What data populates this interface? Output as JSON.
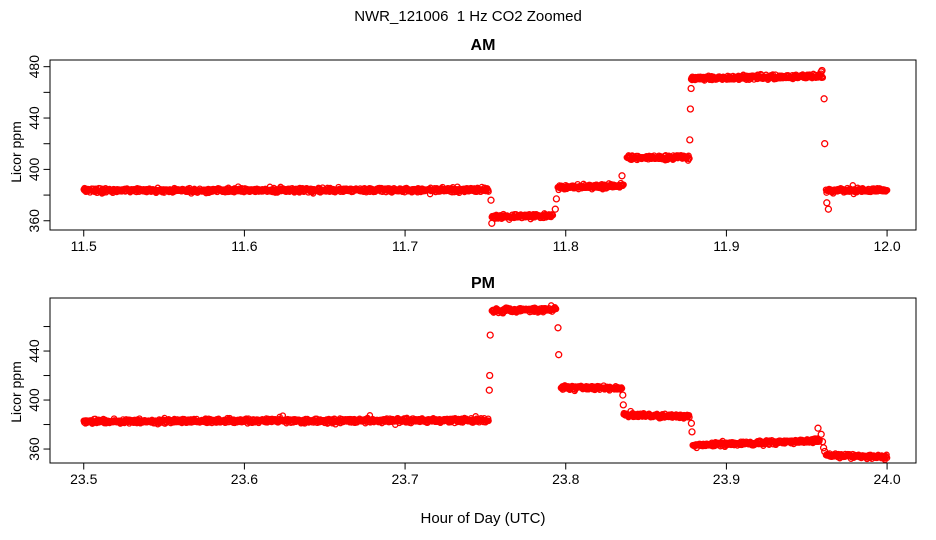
{
  "figure": {
    "title": "NWR_121006  1 Hz CO2 Zoomed",
    "xlabel": "Hour of Day (UTC)",
    "background": "#FFFFFF",
    "axis_color": "#000000",
    "point_color": "#FF0000"
  },
  "chart_data": [
    {
      "type": "scatter",
      "title": "AM",
      "ylabel": "Licor ppm",
      "marker": "open-circle",
      "point_color": "#FF0000",
      "sample_rate_hz": 1,
      "xlim": [
        11.479,
        12.018
      ],
      "ylim": [
        352.8,
        485.2
      ],
      "xticks": [
        11.5,
        11.6,
        11.7,
        11.8,
        11.9,
        12.0
      ],
      "xtick_labels": [
        "11.5",
        "11.6",
        "11.7",
        "11.8",
        "11.9",
        "12.0"
      ],
      "yticks_all": [
        360,
        380,
        400,
        420,
        440,
        460,
        480
      ],
      "yticks_labeled": [
        360,
        400,
        440,
        480
      ],
      "grid": false,
      "segments": [
        {
          "t0": 11.5,
          "t1": 11.752,
          "v0": 383.5,
          "v1": 384.0
        },
        {
          "t0": 11.754,
          "t1": 11.792,
          "v0": 363.0,
          "v1": 364.0
        },
        {
          "t0": 11.795,
          "t1": 11.836,
          "v0": 386.0,
          "v1": 387.0
        },
        {
          "t0": 11.838,
          "t1": 11.877,
          "v0": 409.0,
          "v1": 409.5
        },
        {
          "t0": 11.878,
          "t1": 11.96,
          "v0": 471.0,
          "v1": 472.5
        },
        {
          "t0": 11.962,
          "t1": 12.0,
          "v0": 383.5,
          "v1": 384.0
        }
      ],
      "transition_points": [
        {
          "t": 11.7535,
          "v": 376
        },
        {
          "t": 11.754,
          "v": 358
        },
        {
          "t": 11.7935,
          "v": 369
        },
        {
          "t": 11.7942,
          "v": 377
        },
        {
          "t": 11.835,
          "v": 395
        },
        {
          "t": 11.8772,
          "v": 423
        },
        {
          "t": 11.8776,
          "v": 447
        },
        {
          "t": 11.878,
          "v": 463
        },
        {
          "t": 11.959,
          "v": 476
        },
        {
          "t": 11.9595,
          "v": 477
        },
        {
          "t": 11.9608,
          "v": 455
        },
        {
          "t": 11.9612,
          "v": 420
        },
        {
          "t": 11.9625,
          "v": 374
        },
        {
          "t": 11.9635,
          "v": 369
        }
      ]
    },
    {
      "type": "scatter",
      "title": "PM",
      "ylabel": "Licor ppm",
      "marker": "open-circle",
      "point_color": "#FF0000",
      "sample_rate_hz": 1,
      "xlim": [
        23.479,
        24.018
      ],
      "ylim": [
        348.6,
        483.3
      ],
      "xticks": [
        23.5,
        23.6,
        23.7,
        23.8,
        23.9,
        24.0
      ],
      "xtick_labels": [
        "23.5",
        "23.6",
        "23.7",
        "23.8",
        "23.9",
        "24.0"
      ],
      "yticks_all": [
        360,
        380,
        400,
        420,
        440,
        460
      ],
      "yticks_labeled": [
        360,
        400,
        440
      ],
      "grid": false,
      "segments": [
        {
          "t0": 23.5,
          "t1": 23.752,
          "v0": 382.5,
          "v1": 383.5
        },
        {
          "t0": 23.754,
          "t1": 23.794,
          "v0": 473.0,
          "v1": 474.0
        },
        {
          "t0": 23.797,
          "t1": 23.835,
          "v0": 410.5,
          "v1": 409.5
        },
        {
          "t0": 23.836,
          "t1": 23.877,
          "v0": 388.0,
          "v1": 386.5
        },
        {
          "t0": 23.879,
          "t1": 23.958,
          "v0": 363.0,
          "v1": 367.0
        },
        {
          "t0": 23.962,
          "t1": 24.0,
          "v0": 355.0,
          "v1": 353.5
        }
      ],
      "transition_points": [
        {
          "t": 23.7524,
          "v": 408
        },
        {
          "t": 23.7527,
          "v": 420
        },
        {
          "t": 23.753,
          "v": 453
        },
        {
          "t": 23.7952,
          "v": 459
        },
        {
          "t": 23.7956,
          "v": 437
        },
        {
          "t": 23.8355,
          "v": 404
        },
        {
          "t": 23.8358,
          "v": 396
        },
        {
          "t": 23.8782,
          "v": 381
        },
        {
          "t": 23.8786,
          "v": 374
        },
        {
          "t": 23.957,
          "v": 377
        },
        {
          "t": 23.959,
          "v": 372
        },
        {
          "t": 23.9598,
          "v": 366
        },
        {
          "t": 23.9605,
          "v": 361
        },
        {
          "t": 23.9612,
          "v": 358
        }
      ]
    }
  ]
}
